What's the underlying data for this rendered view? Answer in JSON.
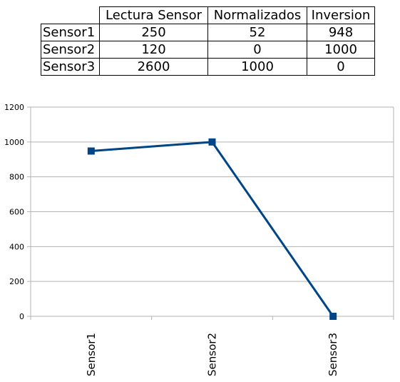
{
  "table": {
    "columns": [
      "Lectura Sensor",
      "Normalizados",
      "Inversion"
    ],
    "rows": [
      {
        "label": "Sensor1",
        "values": [
          "250",
          "52",
          "948"
        ]
      },
      {
        "label": "Sensor2",
        "values": [
          "120",
          "0",
          "1000"
        ]
      },
      {
        "label": "Sensor3",
        "values": [
          "2600",
          "1000",
          "0"
        ]
      }
    ]
  },
  "colors": {
    "series": "#004586",
    "grid": "#b3b3b3",
    "axis": "#b3b3b3"
  },
  "chart_data": {
    "type": "line",
    "categories": [
      "Sensor1",
      "Sensor2",
      "Sensor3"
    ],
    "series": [
      {
        "values": [
          948,
          1000,
          0
        ],
        "marker": "square"
      }
    ],
    "yticks": [
      0,
      200,
      400,
      600,
      800,
      1000,
      1200
    ],
    "ylim": [
      0,
      1200
    ],
    "grid": "horizontal",
    "legend": "none",
    "title": "",
    "xlabel": "",
    "ylabel": ""
  }
}
